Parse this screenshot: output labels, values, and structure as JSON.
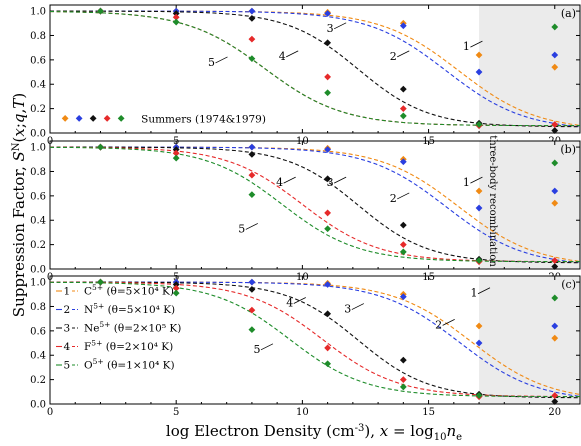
{
  "figure": {
    "ylabel": "Suppression Factor, S^N(x;q,T)",
    "xlabel": "log Electron Density (cm-3), x = log10 ne",
    "shade_label": "three-body recombination"
  },
  "colors": {
    "C5+": "#f08a14",
    "N5+": "#2a3fe0",
    "Ne5+": "#111111",
    "F5+": "#e62a2a",
    "O5+": "#1e8c2a",
    "shade": "#ebebeb"
  },
  "chart_data": [
    {
      "type": "line",
      "panel": "(a)",
      "xlim": [
        0,
        21
      ],
      "ylim": [
        0,
        1.05
      ],
      "x_ticks": [
        0,
        5,
        10,
        15,
        20
      ],
      "y_ticks": [
        0.0,
        0.2,
        0.4,
        0.6,
        0.8,
        1.0
      ],
      "x_tick_labels": [
        "0",
        "5",
        "10",
        "15",
        "20"
      ],
      "y_tick_labels": [
        "0.0",
        "0.2",
        "0.4",
        "0.6",
        "0.8",
        "1.0"
      ],
      "shaded_region": [
        17,
        21
      ],
      "series": [
        {
          "name": "1",
          "ion": "C5+",
          "curve": {
            "x0": 16.2,
            "w": 1.55,
            "floor": 0.02
          }
        },
        {
          "name": "2",
          "ion": "N5+",
          "curve": {
            "x0": 15.7,
            "w": 1.55,
            "floor": 0.02
          }
        },
        {
          "name": "3",
          "ion": "Ne5+",
          "curve": {
            "x0": 12.2,
            "w": 1.4,
            "floor": 0.05
          }
        },
        {
          "name": "4",
          "ion": "F5+",
          "curve": {
            "x0": 8.5,
            "w": 1.55,
            "floor": 0.06
          }
        },
        {
          "name": "5",
          "ion": "O5+",
          "curve": {
            "x0": 8.5,
            "w": 1.55,
            "floor": 0.06
          }
        }
      ],
      "points": [
        {
          "ion": "C5+",
          "x": [
            2,
            5,
            8,
            11,
            14,
            17,
            20
          ],
          "y": [
            1.0,
            1.0,
            1.0,
            0.99,
            0.9,
            0.64,
            0.54
          ]
        },
        {
          "ion": "N5+",
          "x": [
            2,
            5,
            8,
            11,
            14,
            17,
            20
          ],
          "y": [
            1.0,
            1.0,
            1.0,
            0.98,
            0.88,
            0.5,
            0.64
          ]
        },
        {
          "ion": "Ne5+",
          "x": [
            2,
            5,
            8,
            11,
            14,
            17,
            20
          ],
          "y": [
            1.0,
            0.98,
            0.94,
            0.74,
            0.36,
            0.08,
            0.02
          ]
        },
        {
          "ion": "F5+",
          "x": [
            2,
            5,
            8,
            11,
            14,
            17,
            20
          ],
          "y": [
            1.0,
            0.95,
            0.77,
            0.46,
            0.2,
            0.06,
            0.07
          ]
        },
        {
          "ion": "O5+",
          "x": [
            2,
            5,
            8,
            11,
            14,
            17,
            20
          ],
          "y": [
            1.0,
            0.91,
            0.61,
            0.33,
            0.14,
            0.07,
            0.87
          ]
        }
      ],
      "annotations": [
        {
          "text": "1",
          "x": 16.5,
          "y": 0.68
        },
        {
          "text": "2",
          "x": 13.6,
          "y": 0.6
        },
        {
          "text": "3",
          "x": 11.1,
          "y": 0.83
        },
        {
          "text": "4",
          "x": 9.2,
          "y": 0.6
        },
        {
          "text": "5",
          "x": 6.4,
          "y": 0.55
        }
      ],
      "legend": {
        "label": "Summers (1974&1979)",
        "position": "lower-left"
      }
    },
    {
      "type": "line",
      "panel": "(b)",
      "xlim": [
        0,
        21
      ],
      "ylim": [
        0,
        1.05
      ],
      "x_ticks": [
        0,
        5,
        10,
        15,
        20
      ],
      "y_ticks": [
        0.0,
        0.2,
        0.4,
        0.6,
        0.8,
        1.0
      ],
      "x_tick_labels": [
        "0",
        "5",
        "10",
        "15",
        "20"
      ],
      "y_tick_labels": [
        "0.0",
        "0.2",
        "0.4",
        "0.6",
        "0.8",
        "1.0"
      ],
      "shaded_region": [
        17,
        21
      ],
      "series": [
        {
          "name": "1",
          "ion": "C5+",
          "curve": {
            "x0": 16.2,
            "w": 1.55,
            "floor": 0.02
          }
        },
        {
          "name": "2",
          "ion": "N5+",
          "curve": {
            "x0": 15.7,
            "w": 1.55,
            "floor": 0.02
          }
        },
        {
          "name": "3",
          "ion": "Ne5+",
          "curve": {
            "x0": 12.2,
            "w": 1.4,
            "floor": 0.05
          }
        },
        {
          "name": "4",
          "ion": "F5+",
          "curve": {
            "x0": 10.0,
            "w": 1.5,
            "floor": 0.06
          }
        },
        {
          "name": "5",
          "ion": "O5+",
          "curve": {
            "x0": 9.2,
            "w": 1.5,
            "floor": 0.06
          }
        }
      ],
      "points": [
        {
          "ion": "C5+",
          "x": [
            2,
            5,
            8,
            11,
            14,
            17,
            20
          ],
          "y": [
            1.0,
            1.0,
            1.0,
            0.99,
            0.9,
            0.64,
            0.54
          ]
        },
        {
          "ion": "N5+",
          "x": [
            2,
            5,
            8,
            11,
            14,
            17,
            20
          ],
          "y": [
            1.0,
            1.0,
            1.0,
            0.98,
            0.88,
            0.5,
            0.64
          ]
        },
        {
          "ion": "Ne5+",
          "x": [
            2,
            5,
            8,
            11,
            14,
            17,
            20
          ],
          "y": [
            1.0,
            0.98,
            0.94,
            0.74,
            0.36,
            0.08,
            0.02
          ]
        },
        {
          "ion": "F5+",
          "x": [
            2,
            5,
            8,
            11,
            14,
            17,
            20
          ],
          "y": [
            1.0,
            0.95,
            0.77,
            0.46,
            0.2,
            0.06,
            0.07
          ]
        },
        {
          "ion": "O5+",
          "x": [
            2,
            5,
            8,
            11,
            14,
            17,
            20
          ],
          "y": [
            1.0,
            0.91,
            0.61,
            0.33,
            0.14,
            0.07,
            0.87
          ]
        }
      ],
      "annotations": [
        {
          "text": "1",
          "x": 16.5,
          "y": 0.68
        },
        {
          "text": "2",
          "x": 13.6,
          "y": 0.55
        },
        {
          "text": "3",
          "x": 11.1,
          "y": 0.68
        },
        {
          "text": "4",
          "x": 9.1,
          "y": 0.68
        },
        {
          "text": "5",
          "x": 7.6,
          "y": 0.3
        }
      ]
    },
    {
      "type": "line",
      "panel": "(c)",
      "xlim": [
        0,
        21
      ],
      "ylim": [
        0,
        1.05
      ],
      "x_ticks": [
        0,
        5,
        10,
        15,
        20
      ],
      "y_ticks": [
        0.0,
        0.2,
        0.4,
        0.6,
        0.8,
        1.0
      ],
      "x_tick_labels": [
        "0",
        "5",
        "10",
        "15",
        "20"
      ],
      "y_tick_labels": [
        "0.0",
        "0.2",
        "0.4",
        "0.6",
        "0.8",
        "1.0"
      ],
      "shaded_region": [
        17,
        21
      ],
      "series": [
        {
          "name": "1",
          "ion": "C5+",
          "curve": {
            "x0": 16.7,
            "w": 1.55,
            "floor": 0.02
          }
        },
        {
          "name": "2",
          "ion": "N5+",
          "curve": {
            "x0": 16.2,
            "w": 1.55,
            "floor": 0.02
          }
        },
        {
          "name": "3",
          "ion": "Ne5+",
          "curve": {
            "x0": 12.2,
            "w": 1.4,
            "floor": 0.05
          }
        },
        {
          "name": "4",
          "ion": "F5+",
          "curve": {
            "x0": 10.8,
            "w": 1.5,
            "floor": 0.06
          }
        },
        {
          "name": "5",
          "ion": "O5+",
          "curve": {
            "x0": 9.5,
            "w": 1.5,
            "floor": 0.06
          }
        }
      ],
      "points": [
        {
          "ion": "C5+",
          "x": [
            2,
            5,
            8,
            11,
            14,
            17,
            20
          ],
          "y": [
            1.0,
            1.0,
            1.0,
            0.99,
            0.9,
            0.64,
            0.54
          ]
        },
        {
          "ion": "N5+",
          "x": [
            2,
            5,
            8,
            11,
            14,
            17,
            20
          ],
          "y": [
            1.0,
            1.0,
            1.0,
            0.98,
            0.88,
            0.5,
            0.64
          ]
        },
        {
          "ion": "Ne5+",
          "x": [
            2,
            5,
            8,
            11,
            14,
            17,
            20
          ],
          "y": [
            1.0,
            0.98,
            0.94,
            0.74,
            0.36,
            0.08,
            0.02
          ]
        },
        {
          "ion": "F5+",
          "x": [
            2,
            5,
            8,
            11,
            14,
            17,
            20
          ],
          "y": [
            1.0,
            0.95,
            0.77,
            0.46,
            0.2,
            0.06,
            0.07
          ]
        },
        {
          "ion": "O5+",
          "x": [
            2,
            5,
            8,
            11,
            14,
            17,
            20
          ],
          "y": [
            1.0,
            0.91,
            0.61,
            0.33,
            0.14,
            0.07,
            0.87
          ]
        }
      ],
      "annotations": [
        {
          "text": "1",
          "x": 16.8,
          "y": 0.88
        },
        {
          "text": "2",
          "x": 15.4,
          "y": 0.62
        },
        {
          "text": "3",
          "x": 11.8,
          "y": 0.75
        },
        {
          "text": "4",
          "x": 9.5,
          "y": 0.8
        },
        {
          "text": "5",
          "x": 8.2,
          "y": 0.42
        }
      ],
      "legend": {
        "position": "left",
        "entries": [
          {
            "num": "1",
            "ion": "C",
            "theta": "(θ=5×10⁴ K)"
          },
          {
            "num": "2",
            "ion": "N",
            "theta": "(θ=5×10⁴ K)"
          },
          {
            "num": "3",
            "ion": "Ne",
            "theta": "(θ=2×10⁵ K)"
          },
          {
            "num": "4",
            "ion": "F",
            "theta": "(θ=2×10⁴ K)"
          },
          {
            "num": "5",
            "ion": "O",
            "theta": "(θ=1×10⁴ K)"
          }
        ]
      }
    }
  ]
}
